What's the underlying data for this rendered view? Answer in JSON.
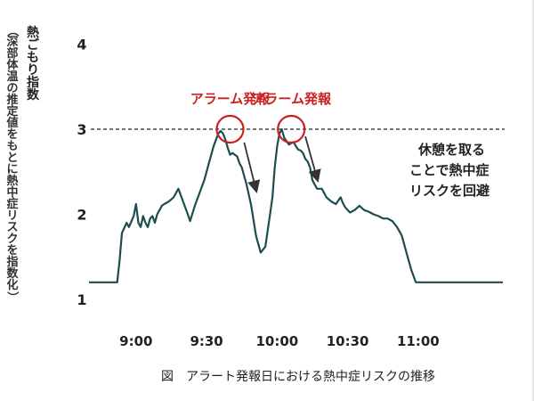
{
  "chart_data": {
    "type": "line",
    "title": "",
    "caption": "図　アラート発報日における熱中症リスクの推移",
    "ylabel": "熱ごもり指数",
    "ylabel_sub": "（深部体温の推定値をもとに熱中症リスクを指数化）",
    "xlabel": "",
    "ylim": [
      0.8,
      4.1
    ],
    "xlim": [
      "8:40",
      "11:36"
    ],
    "y_ticks": [
      "1",
      "2",
      "3",
      "4"
    ],
    "x_ticks": [
      "9:00",
      "9:30",
      "10:00",
      "10:30",
      "11:00"
    ],
    "threshold": {
      "y": 3,
      "style": "dashed"
    },
    "grid": false,
    "series": [
      {
        "color": "#1e4d4f",
        "x": [
          "8:40",
          "8:52",
          "8:53",
          "8:54",
          "8:56",
          "8:57",
          "8:59",
          "9:00",
          "9:01",
          "9:02",
          "9:03",
          "9:04",
          "9:05",
          "9:06",
          "9:07",
          "9:08",
          "9:09",
          "9:10",
          "9:11",
          "9:12",
          "9:14",
          "9:16",
          "9:18",
          "9:20",
          "9:22",
          "9:23",
          "9:25",
          "9:27",
          "9:29",
          "9:31",
          "9:33",
          "9:35",
          "9:36",
          "9:37",
          "9:38",
          "9:39",
          "9:40",
          "9:41",
          "9:42",
          "9:43",
          "9:44",
          "9:45",
          "9:47",
          "9:49",
          "9:51",
          "9:53",
          "9:55",
          "9:57",
          "9:58",
          "9:59",
          "10:00",
          "10:01",
          "10:02",
          "10:03",
          "10:05",
          "10:07",
          "10:08",
          "10:09",
          "10:10",
          "10:11",
          "10:12",
          "10:13",
          "10:14",
          "10:15",
          "10:17",
          "10:19",
          "10:21",
          "10:23",
          "10:25",
          "10:27",
          "10:28",
          "10:29",
          "10:30",
          "10:31",
          "10:33",
          "10:35",
          "10:37",
          "10:39",
          "10:41",
          "10:43",
          "10:45",
          "10:47",
          "10:49",
          "10:51",
          "10:53",
          "10:55",
          "10:57",
          "10:59",
          "11:01",
          "11:03",
          "11:05",
          "11:36"
        ],
        "y": [
          1.2,
          1.2,
          1.45,
          1.78,
          1.9,
          1.85,
          1.98,
          2.12,
          1.9,
          1.85,
          1.98,
          1.9,
          1.85,
          1.95,
          1.98,
          1.9,
          2.0,
          2.05,
          2.1,
          2.12,
          2.15,
          2.2,
          2.3,
          2.15,
          2.0,
          1.92,
          2.1,
          2.25,
          2.4,
          2.6,
          2.8,
          2.95,
          2.98,
          2.95,
          2.88,
          2.78,
          2.7,
          2.72,
          2.7,
          2.68,
          2.6,
          2.55,
          2.35,
          2.1,
          1.75,
          1.55,
          1.62,
          2.0,
          2.2,
          2.55,
          2.8,
          2.95,
          3.0,
          2.9,
          2.82,
          2.85,
          2.8,
          2.76,
          2.75,
          2.72,
          2.65,
          2.62,
          2.55,
          2.4,
          2.3,
          2.3,
          2.2,
          2.15,
          2.12,
          2.2,
          2.13,
          2.08,
          2.05,
          2.02,
          2.05,
          2.1,
          2.05,
          2.03,
          2.0,
          1.98,
          1.95,
          1.95,
          1.92,
          1.85,
          1.75,
          1.55,
          1.35,
          1.2,
          1.2,
          1.2,
          1.2,
          1.2
        ]
      }
    ],
    "markers": [
      {
        "x": "9:40",
        "y": 3.0,
        "label": "アラーム発報"
      },
      {
        "x": "10:06",
        "y": 3.0,
        "label": "アラーム発報"
      }
    ],
    "annotation": {
      "lines": [
        "休憩を取る",
        "ことで熱中症",
        "リスクを回避"
      ]
    },
    "colors": {
      "line": "#1e4d4f",
      "alert": "#cc2020",
      "threshold": "#222222",
      "arrow": "#333333"
    }
  }
}
